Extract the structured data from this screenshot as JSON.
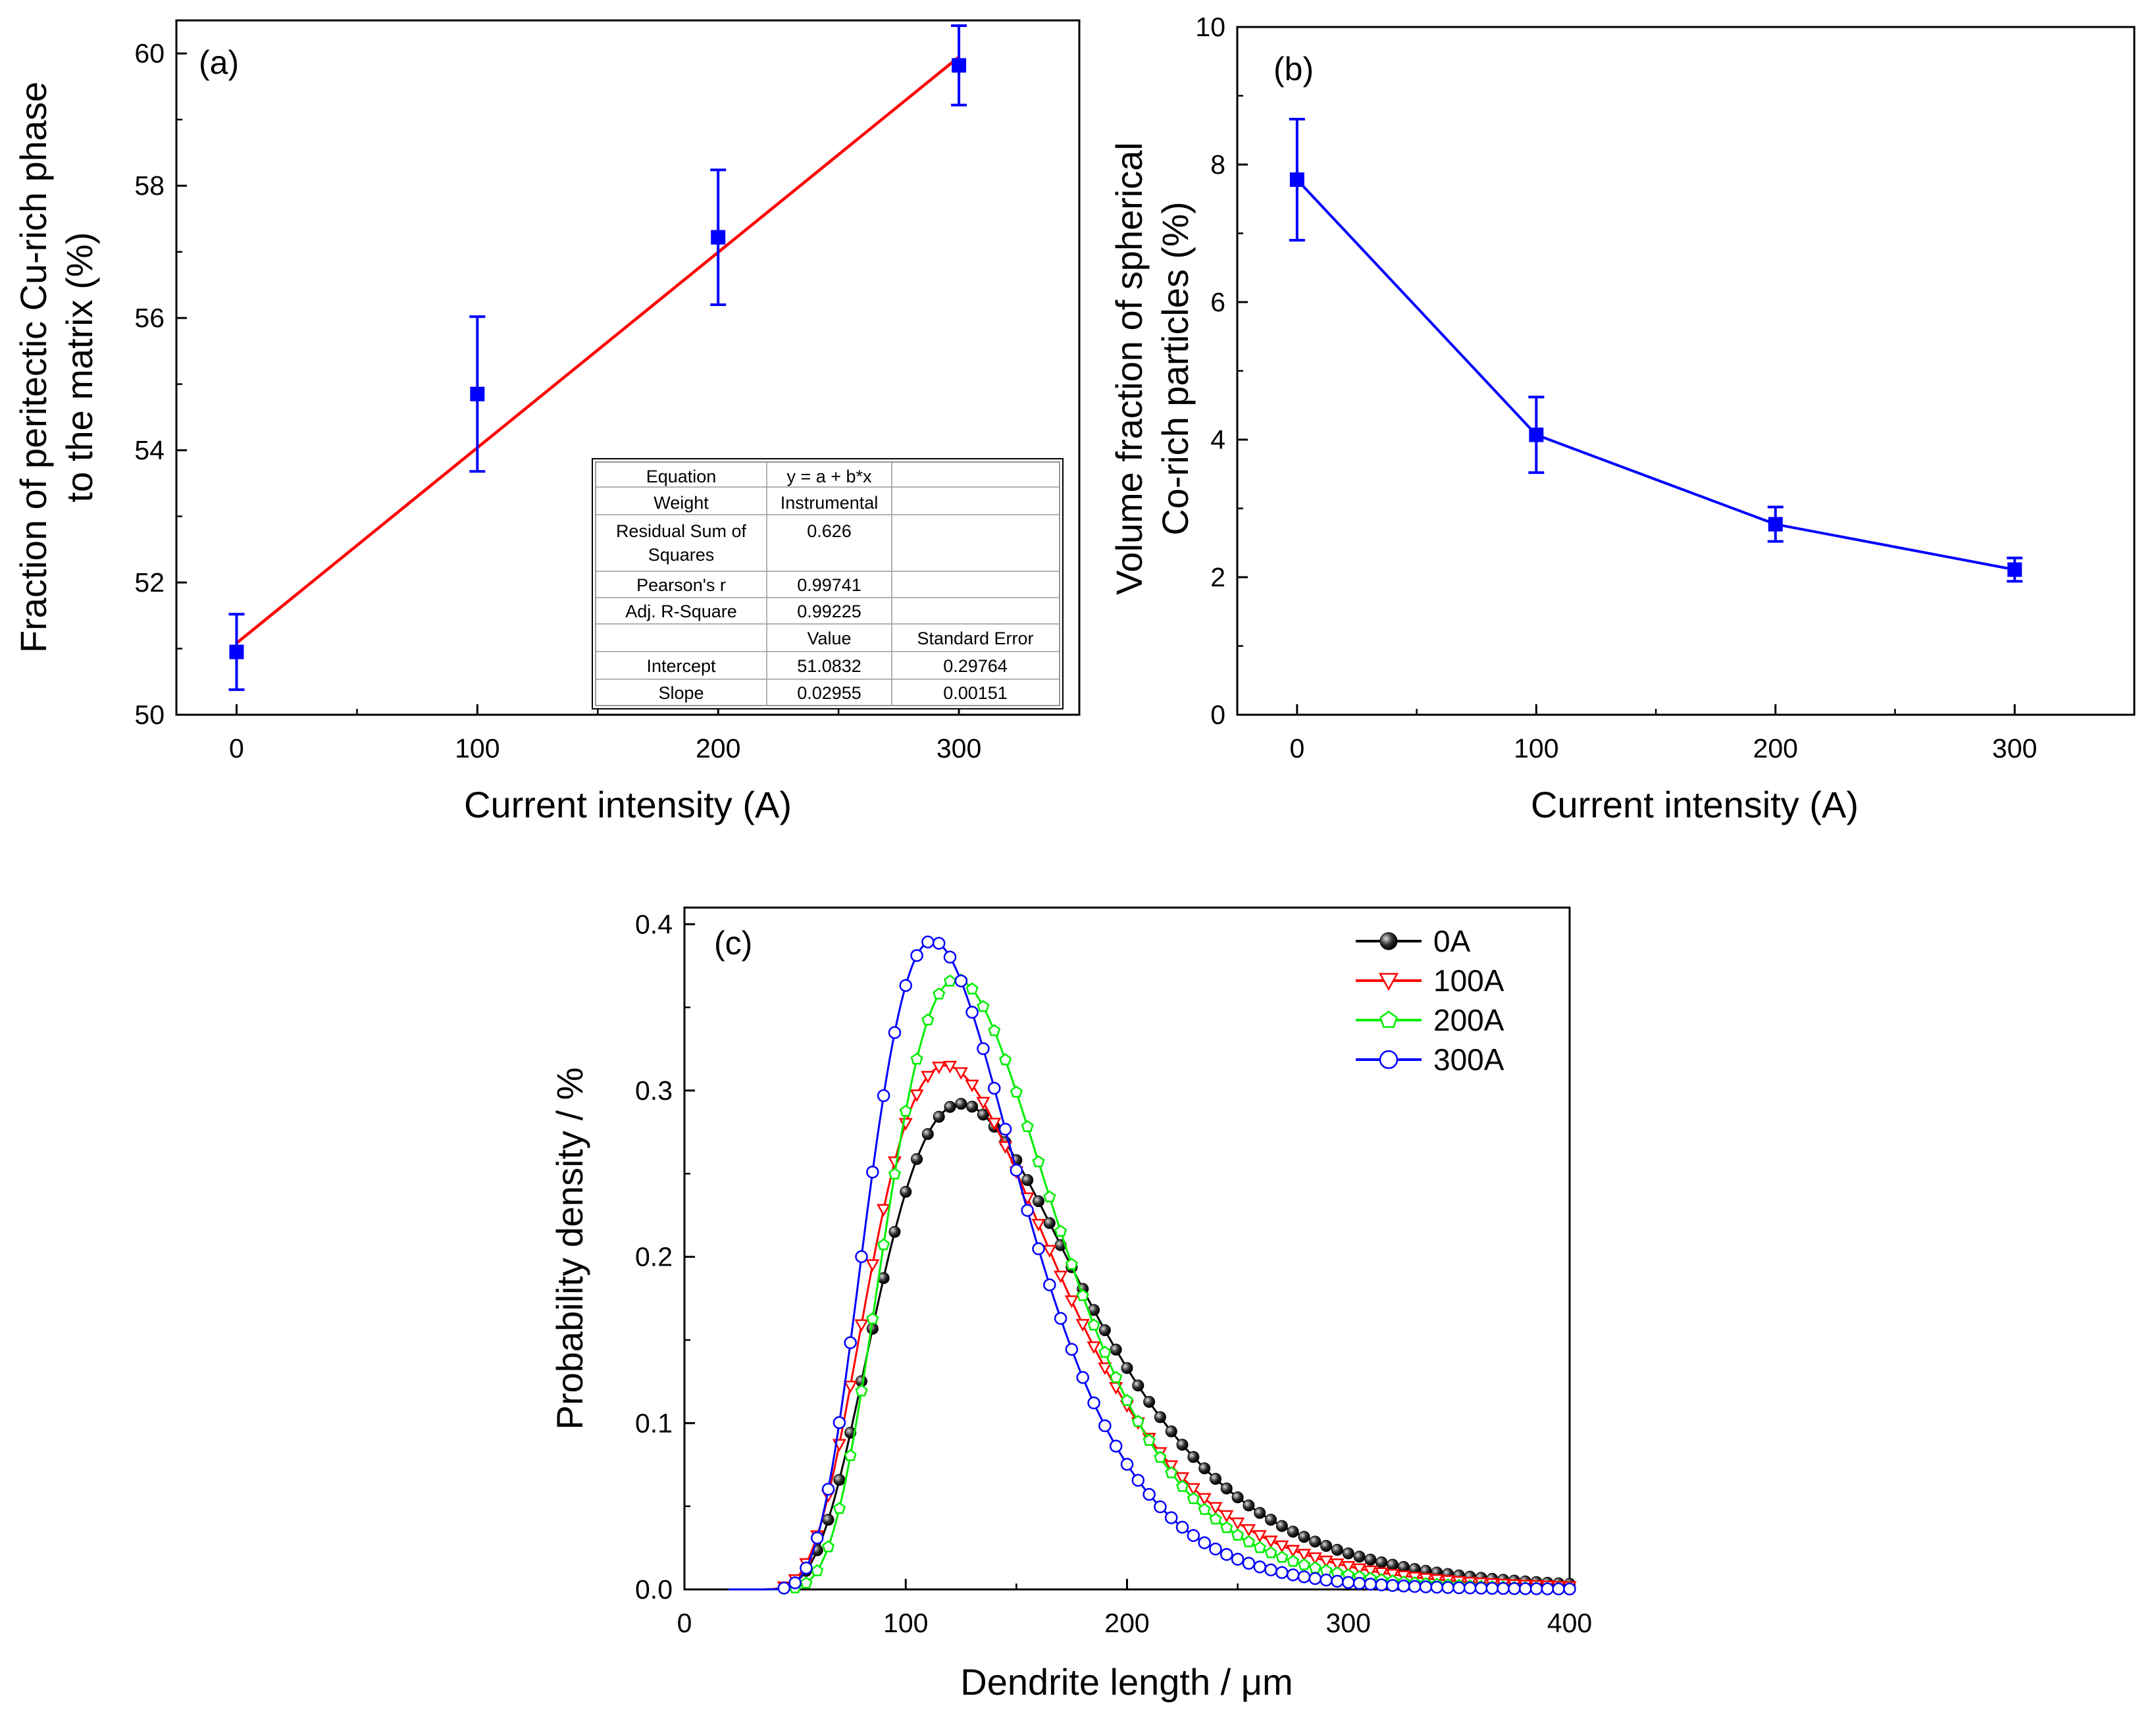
{
  "chart_data": [
    {
      "id": "a",
      "type": "scatter",
      "panel_label": "(a)",
      "xlabel": "Current intensity (A)",
      "ylabel_lines": [
        "Fraction of peritectic Cu-rich phase",
        "to the matrix  (%)"
      ],
      "xlim": [
        -25,
        350
      ],
      "ylim": [
        50,
        60.5
      ],
      "xticks": [
        0,
        100,
        200,
        300
      ],
      "yticks": [
        50,
        52,
        54,
        56,
        58,
        60
      ],
      "series": [
        {
          "name": "data",
          "color": "#0000ff",
          "x": [
            0,
            100,
            200,
            300
          ],
          "y": [
            50.95,
            54.85,
            57.22,
            59.82
          ],
          "err": [
            0.57,
            1.17,
            1.02,
            0.6
          ]
        }
      ],
      "fit": {
        "color": "#ff0000",
        "intercept": 51.0832,
        "slope": 0.02955,
        "x_range": [
          0,
          300
        ]
      },
      "fit_table": {
        "rows": [
          [
            "Equation",
            "y = a + b*x",
            ""
          ],
          [
            "Weight",
            "Instrumental",
            ""
          ],
          [
            "Residual Sum of Squares",
            "0.626",
            ""
          ],
          [
            "Pearson's r",
            "0.99741",
            ""
          ],
          [
            "Adj. R-Square",
            "0.99225",
            ""
          ],
          [
            "",
            "Value",
            "Standard Error"
          ],
          [
            "Intercept",
            "51.0832",
            "0.29764"
          ],
          [
            "Slope",
            "0.02955",
            "0.00151"
          ]
        ]
      }
    },
    {
      "id": "b",
      "type": "line",
      "panel_label": "(b)",
      "xlabel": "Current intensity (A)",
      "ylabel_lines": [
        "Volume fraction of spherical",
        "Co-rich particles  (%)"
      ],
      "xlim": [
        -25,
        350
      ],
      "ylim": [
        0,
        10
      ],
      "xticks": [
        0,
        100,
        200,
        300
      ],
      "yticks": [
        0,
        2,
        4,
        6,
        8,
        10
      ],
      "series": [
        {
          "name": "data",
          "color": "#0000ff",
          "x": [
            0,
            100,
            200,
            300
          ],
          "y": [
            7.78,
            4.07,
            2.77,
            2.11
          ],
          "err": [
            0.88,
            0.55,
            0.25,
            0.17
          ]
        }
      ]
    },
    {
      "id": "c",
      "type": "line",
      "panel_label": "(c)",
      "xlabel": "Dendrite length / μm",
      "ylabel": "Probability density / %",
      "xlim": [
        0,
        400
      ],
      "ylim": [
        0,
        0.41
      ],
      "xticks": [
        0,
        100,
        200,
        300,
        400
      ],
      "yticks": [
        0.0,
        0.1,
        0.2,
        0.3,
        0.4
      ],
      "ytick_labels": [
        "0.0",
        "0.1",
        "0.2",
        "0.3",
        "0.4"
      ],
      "x_sample_start": 20,
      "x_sample_end": 400,
      "x_sample_step": 5,
      "series": [
        {
          "name": "0A",
          "color": "#000000",
          "marker": "sphere",
          "x0": 20,
          "peak_x": 125,
          "peak_y": 0.292,
          "sigma": 0.43
        },
        {
          "name": "100A",
          "color": "#ff0000",
          "marker": "triangle-down",
          "x0": 20,
          "peak_x": 118,
          "peak_y": 0.315,
          "sigma": 0.42
        },
        {
          "name": "200A",
          "color": "#00ee00",
          "marker": "pentagon",
          "x0": 22,
          "peak_x": 123,
          "peak_y": 0.367,
          "sigma": 0.37
        },
        {
          "name": "300A",
          "color": "#0000ff",
          "marker": "circle",
          "x0": 20,
          "peak_x": 112,
          "peak_y": 0.39,
          "sigma": 0.37
        }
      ]
    }
  ]
}
